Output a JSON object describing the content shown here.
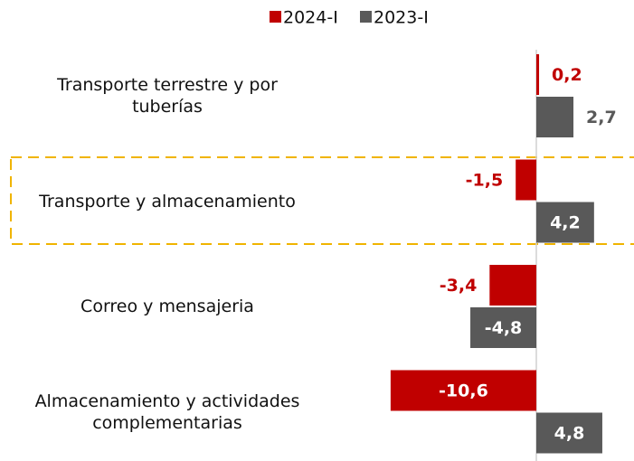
{
  "chart_data": {
    "type": "hbar",
    "categories": [
      "Transporte terrestre y por\ntuberías",
      "Transporte y almacenamiento",
      "Correo y mensajeria",
      "Almacenamiento y actividades\ncomplementarias"
    ],
    "series": [
      {
        "name": "2024-I",
        "color": "#c00000",
        "values": [
          0.2,
          -1.5,
          -3.4,
          -10.6
        ],
        "value_labels": [
          "0,2",
          "-1,5",
          "-3,4",
          "-10,6"
        ]
      },
      {
        "name": "2023-I",
        "color": "#595959",
        "values": [
          2.7,
          4.2,
          -4.8,
          4.8
        ],
        "value_labels": [
          "2,7",
          "4,2",
          "-4,8",
          "4,8"
        ]
      }
    ],
    "xlim": [
      -12,
      7
    ],
    "legend": "top"
  }
}
